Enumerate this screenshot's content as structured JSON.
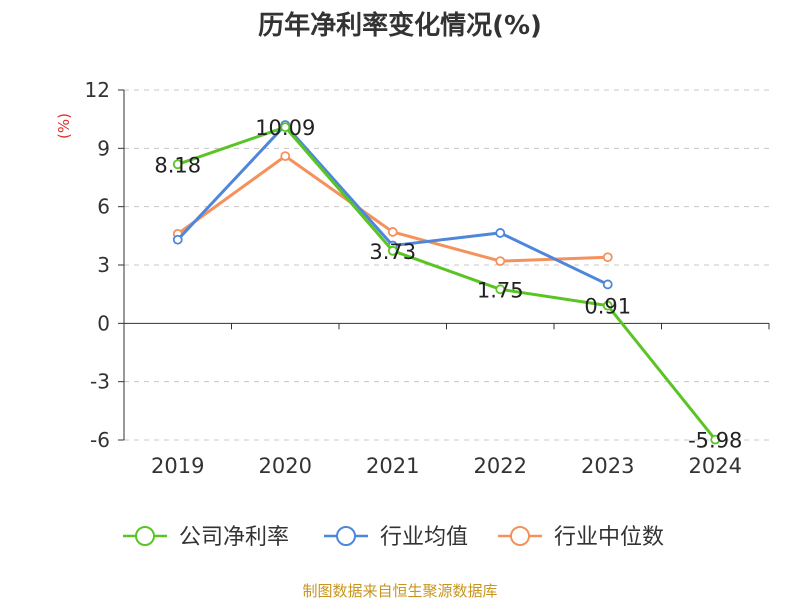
{
  "chart_data": {
    "type": "line",
    "title": "历年净利率变化情况(%)",
    "ylabel": "(%)",
    "categories": [
      "2019",
      "2020",
      "2021",
      "2022",
      "2023",
      "2024"
    ],
    "ylim": [
      -6,
      12
    ],
    "yticks": [
      12,
      9,
      6,
      3,
      0,
      -3,
      -6
    ],
    "grid": true,
    "legend_position": "bottom",
    "series": [
      {
        "name": "公司净利率",
        "color": "#5bc425",
        "values": [
          8.18,
          10.09,
          3.73,
          1.75,
          0.91,
          -5.98
        ],
        "labels": [
          "8.18",
          "10.09",
          "3.73",
          "1.75",
          "0.91",
          "-5.98"
        ]
      },
      {
        "name": "行业均值",
        "color": "#4e86dc",
        "values": [
          4.3,
          10.2,
          4.0,
          4.65,
          2.0,
          null
        ]
      },
      {
        "name": "行业中位数",
        "color": "#f5915b",
        "values": [
          4.6,
          8.6,
          4.7,
          3.2,
          3.4,
          null
        ]
      }
    ],
    "source": "制图数据来自恒生聚源数据库"
  }
}
